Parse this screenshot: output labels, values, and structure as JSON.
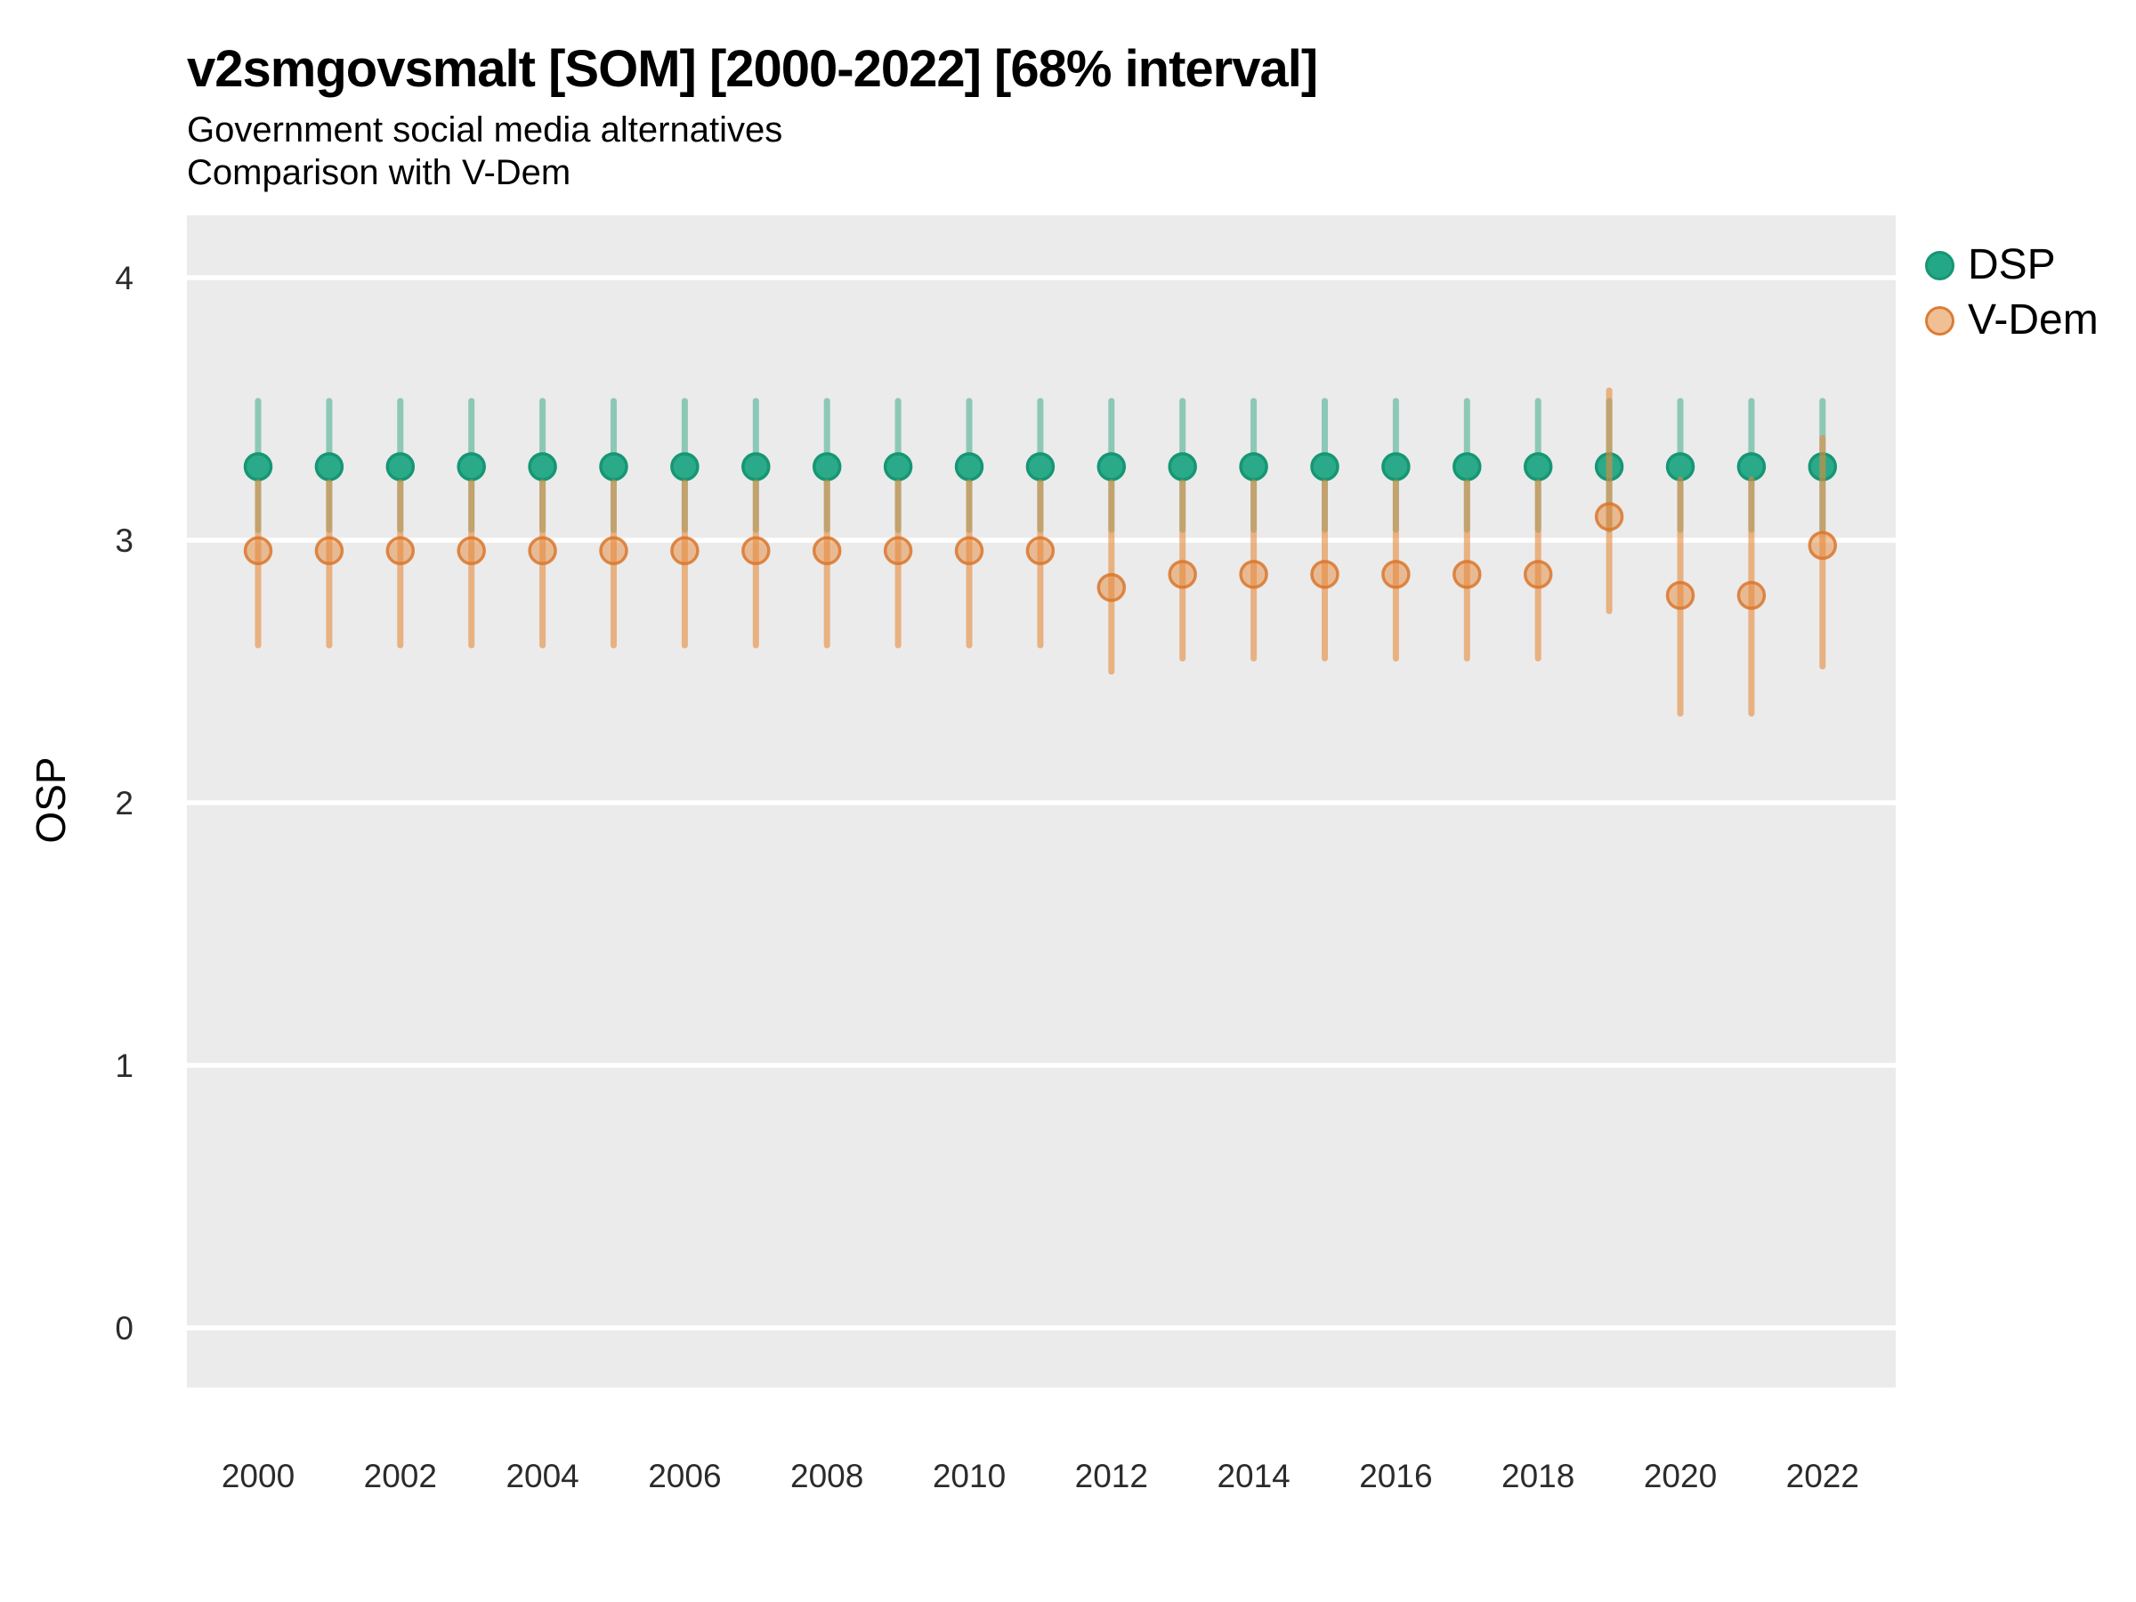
{
  "chart_data": {
    "type": "pointrange",
    "title": "v2smgovsmalt [SOM] [2000-2022] [68% interval]",
    "subtitle_line1": "Government social media alternatives",
    "subtitle_line2": "Comparison with V-Dem",
    "ylabel": "OSP",
    "xlabel": "",
    "interval": "68%",
    "legend_position": "right-top",
    "grid": "horizontal-major-only",
    "ylim": [
      -0.23,
      4.24
    ],
    "yticks": [
      0,
      1,
      2,
      3,
      4
    ],
    "xticks": [
      2000,
      2002,
      2004,
      2006,
      2008,
      2010,
      2012,
      2014,
      2016,
      2018,
      2020,
      2022
    ],
    "x": [
      2000,
      2001,
      2002,
      2003,
      2004,
      2005,
      2006,
      2007,
      2008,
      2009,
      2010,
      2011,
      2012,
      2013,
      2014,
      2015,
      2016,
      2017,
      2018,
      2019,
      2020,
      2021,
      2022
    ],
    "series": [
      {
        "name": "DSP",
        "est": [
          3.28,
          3.28,
          3.28,
          3.28,
          3.28,
          3.28,
          3.28,
          3.28,
          3.28,
          3.28,
          3.28,
          3.28,
          3.28,
          3.28,
          3.28,
          3.28,
          3.28,
          3.28,
          3.28,
          3.28,
          3.28,
          3.28,
          3.28
        ],
        "lo": [
          3.04,
          3.04,
          3.04,
          3.04,
          3.04,
          3.04,
          3.04,
          3.04,
          3.04,
          3.04,
          3.04,
          3.04,
          3.04,
          3.04,
          3.04,
          3.04,
          3.04,
          3.04,
          3.04,
          3.04,
          3.04,
          3.04,
          3.04
        ],
        "hi": [
          3.53,
          3.53,
          3.53,
          3.53,
          3.53,
          3.53,
          3.53,
          3.53,
          3.53,
          3.53,
          3.53,
          3.53,
          3.53,
          3.53,
          3.53,
          3.53,
          3.53,
          3.53,
          3.53,
          3.53,
          3.53,
          3.53,
          3.53
        ]
      },
      {
        "name": "V-Dem",
        "est": [
          2.96,
          2.96,
          2.96,
          2.96,
          2.96,
          2.96,
          2.96,
          2.96,
          2.96,
          2.96,
          2.96,
          2.96,
          2.82,
          2.87,
          2.87,
          2.87,
          2.87,
          2.87,
          2.87,
          3.09,
          2.79,
          2.79,
          2.98
        ],
        "lo": [
          2.6,
          2.6,
          2.6,
          2.6,
          2.6,
          2.6,
          2.6,
          2.6,
          2.6,
          2.6,
          2.6,
          2.6,
          2.5,
          2.55,
          2.55,
          2.55,
          2.55,
          2.55,
          2.55,
          2.73,
          2.34,
          2.34,
          2.52
        ],
        "hi": [
          3.22,
          3.22,
          3.22,
          3.22,
          3.22,
          3.22,
          3.22,
          3.22,
          3.22,
          3.22,
          3.22,
          3.22,
          3.22,
          3.22,
          3.22,
          3.22,
          3.22,
          3.22,
          3.22,
          3.57,
          3.23,
          3.23,
          3.39
        ]
      }
    ]
  },
  "colors": {
    "dsp": "#1B9E77",
    "dsp_point_fill": "#2BAA89",
    "dsp_point_stroke": "#169674",
    "vdem": "#E68A3C",
    "vdem_point_stroke": "#D9772D",
    "panel_background": "#EBEBEB",
    "gridline": "#FFFFFF",
    "text": "#000000",
    "axis_text": "#2B2B2B"
  }
}
